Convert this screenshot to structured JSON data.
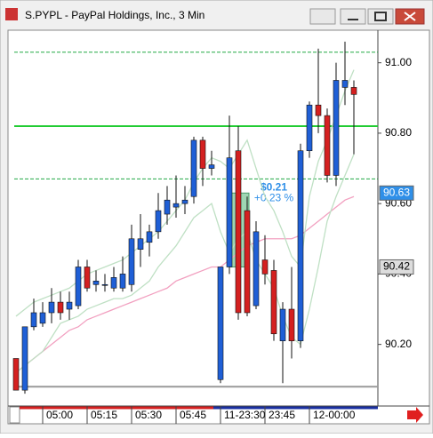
{
  "window_title": "S.PYPL - PayPal Holdings, Inc., 3 Min",
  "chart_data": {
    "type": "candlestick",
    "categories": [
      null,
      null,
      null,
      "05:00",
      null,
      null,
      null,
      null,
      "05:15",
      null,
      null,
      null,
      null,
      "05:30",
      null,
      null,
      null,
      null,
      "05:45",
      null,
      null,
      null,
      null,
      "11-23:30",
      null,
      null,
      null,
      null,
      "23:45",
      null,
      null,
      null,
      null,
      "12-00:00",
      null,
      null,
      null,
      null,
      null
    ],
    "open": [
      90.16,
      90.07,
      90.25,
      90.26,
      90.29,
      90.32,
      90.3,
      90.31,
      90.42,
      90.37,
      90.37,
      90.36,
      90.36,
      90.37,
      90.47,
      90.49,
      90.52,
      90.57,
      90.59,
      90.6,
      90.62,
      90.78,
      90.7,
      90.1,
      90.42,
      90.75,
      90.58,
      90.31,
      90.44,
      90.41,
      90.21,
      90.3,
      90.21,
      90.75,
      90.88,
      90.85,
      90.68,
      90.93,
      90.93
    ],
    "high": [
      90.16,
      90.25,
      90.33,
      90.32,
      90.36,
      90.35,
      90.35,
      90.44,
      90.44,
      90.41,
      90.4,
      90.42,
      90.45,
      90.54,
      90.57,
      90.54,
      90.63,
      90.65,
      90.68,
      90.65,
      90.79,
      90.79,
      90.75,
      90.42,
      90.85,
      90.82,
      90.62,
      90.55,
      90.51,
      90.44,
      90.32,
      90.42,
      90.77,
      90.89,
      91.04,
      90.87,
      91.0,
      91.06,
      90.95
    ],
    "low": [
      90.07,
      90.06,
      90.24,
      90.25,
      90.26,
      90.27,
      90.27,
      90.3,
      90.35,
      90.35,
      90.35,
      90.35,
      90.35,
      90.35,
      90.42,
      90.45,
      90.5,
      90.54,
      90.56,
      90.57,
      90.6,
      90.65,
      90.68,
      90.09,
      90.4,
      90.27,
      90.28,
      90.3,
      90.37,
      90.21,
      90.09,
      90.16,
      90.19,
      90.73,
      90.8,
      90.66,
      90.65,
      90.88,
      90.74
    ],
    "close": [
      90.07,
      90.25,
      90.29,
      90.29,
      90.32,
      90.29,
      90.32,
      90.42,
      90.36,
      90.38,
      90.37,
      90.39,
      90.4,
      90.5,
      90.5,
      90.52,
      90.58,
      90.61,
      90.6,
      90.61,
      90.78,
      90.7,
      90.71,
      90.42,
      90.73,
      90.29,
      90.29,
      90.52,
      90.4,
      90.23,
      90.3,
      90.21,
      90.75,
      90.88,
      90.85,
      90.68,
      90.95,
      90.95,
      90.91
    ],
    "up_color": "#1f5fd6",
    "down_color": "#d42020",
    "lines": [
      {
        "color": "#f2a0c0",
        "values": [
          90.12,
          90.14,
          90.16,
          90.18,
          90.2,
          90.22,
          90.24,
          90.25,
          90.27,
          90.28,
          90.29,
          90.3,
          90.31,
          90.32,
          90.33,
          90.34,
          90.35,
          90.36,
          90.38,
          90.39,
          90.4,
          90.41,
          90.42,
          90.42,
          90.44,
          90.46,
          90.48,
          90.49,
          90.5,
          90.5,
          90.5,
          90.5,
          90.51,
          90.53,
          90.55,
          90.57,
          90.59,
          90.61,
          90.62
        ]
      },
      {
        "color": "#bfe0c4",
        "values": [
          90.28,
          90.3,
          90.32,
          90.33,
          90.34,
          90.35,
          90.36,
          90.38,
          90.4,
          90.41,
          90.42,
          90.43,
          90.44,
          90.46,
          90.48,
          90.5,
          90.52,
          90.55,
          90.58,
          90.61,
          90.66,
          90.7,
          90.73,
          90.72,
          90.7,
          90.74,
          90.78,
          90.7,
          90.62,
          90.58,
          90.52,
          90.45,
          90.42,
          90.62,
          90.72,
          90.78,
          90.85,
          90.92,
          90.98
        ]
      },
      {
        "color": "#bfe0c4",
        "values": [
          90.12,
          90.14,
          90.16,
          90.18,
          90.22,
          90.26,
          90.27,
          90.28,
          90.3,
          90.31,
          90.32,
          90.33,
          90.33,
          90.34,
          90.36,
          90.38,
          90.42,
          90.45,
          90.48,
          90.52,
          90.56,
          90.58,
          90.6,
          90.52,
          90.46,
          90.5,
          90.52,
          90.44,
          90.4,
          90.36,
          90.28,
          90.22,
          90.2,
          90.3,
          90.42,
          90.55,
          90.62,
          90.68,
          90.74
        ]
      }
    ],
    "levels": [
      {
        "value": 91.03,
        "color": "#22aa44",
        "dashed": true
      },
      {
        "value": 90.82,
        "color": "#22cc33",
        "dashed": false
      },
      {
        "value": 90.67,
        "color": "#22aa44",
        "dashed": true
      },
      {
        "value": 90.08,
        "color": "#999999",
        "dashed": false
      }
    ],
    "price_markers": [
      {
        "value": 90.63,
        "color": "#2f8fe8",
        "text_color": "#ffffff"
      },
      {
        "value": 90.42,
        "color": "#dddddd",
        "text_color": "#000000"
      }
    ],
    "measure": {
      "start": 90.42,
      "end": 90.63,
      "change_label": "$0.21",
      "pct_label": "+0.23 %"
    },
    "ylim": [
      90.03,
      91.09
    ],
    "yticks": [
      {
        "value": 91.0,
        "label": "91.00"
      },
      {
        "value": 90.8,
        "label": "90.80"
      },
      {
        "value": 90.6,
        "label": "90.60"
      },
      {
        "value": 90.4,
        "label": "90.40"
      },
      {
        "value": 90.2,
        "label": "90.20"
      }
    ]
  }
}
